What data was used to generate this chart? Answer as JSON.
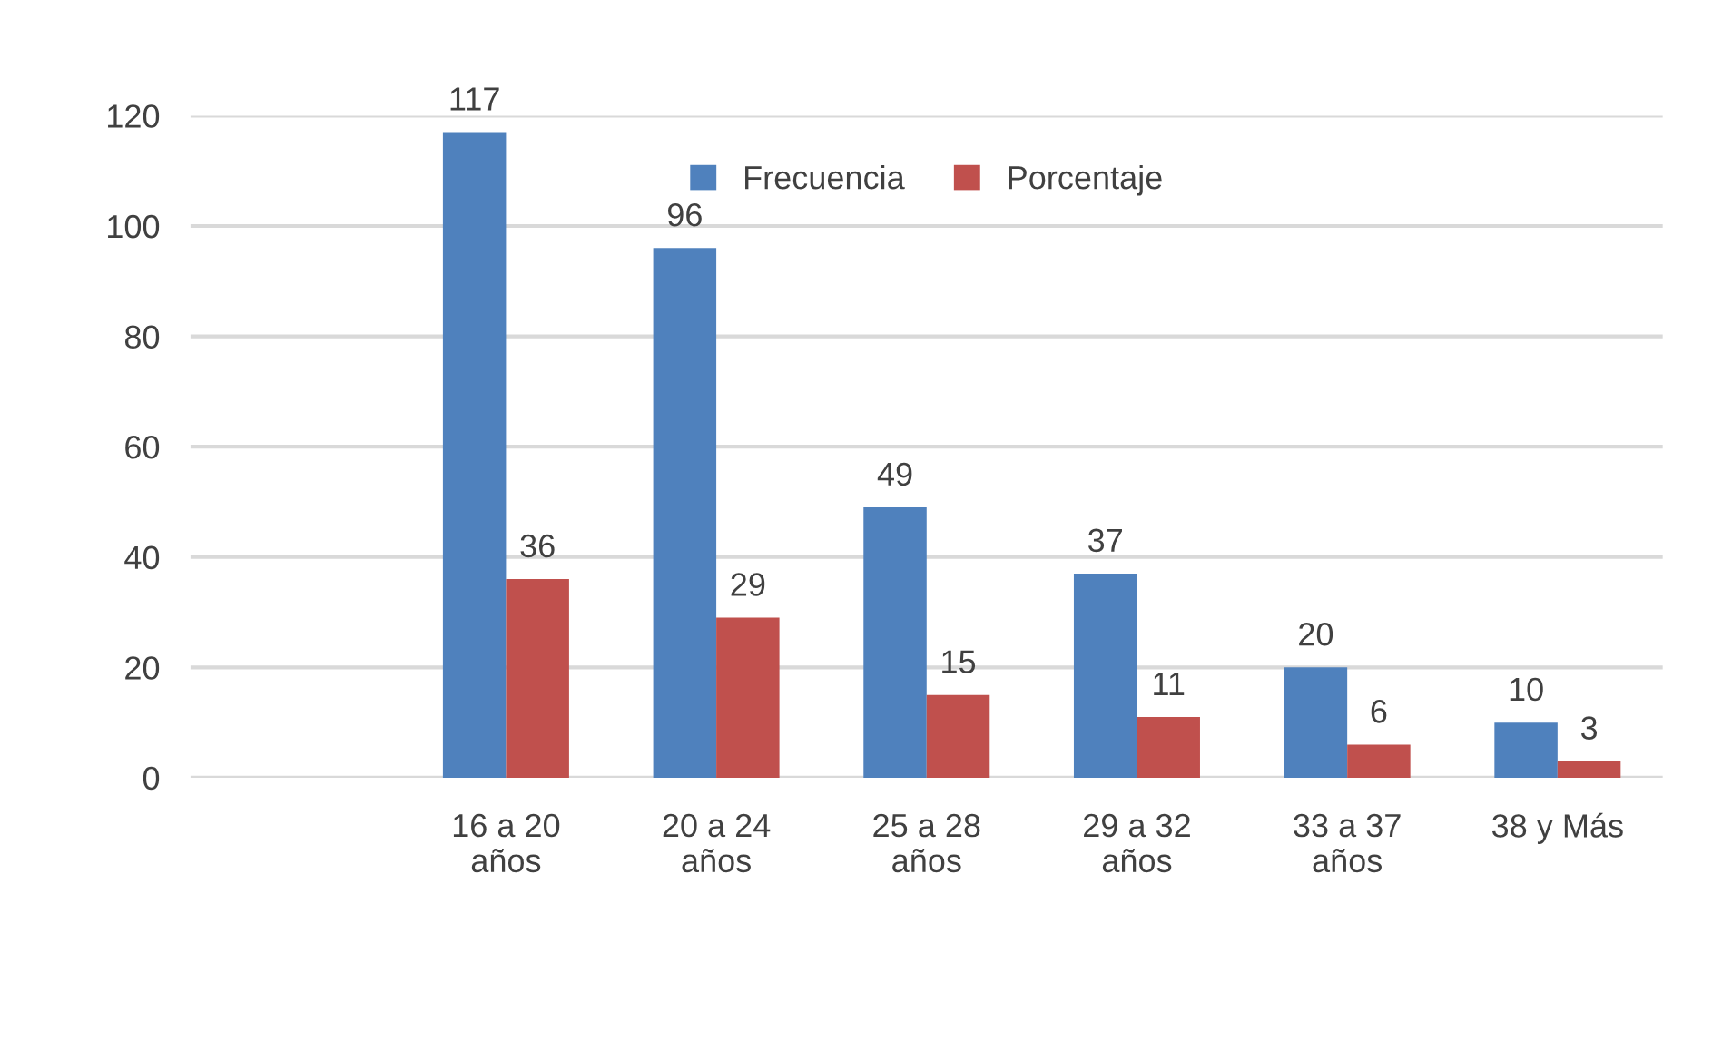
{
  "chart_data": {
    "type": "bar",
    "categories": [
      null,
      "16 a 20 años",
      "20 a 24 años",
      "25 a 28 años",
      "29 a 32 años",
      "33 a 37 años",
      "38 y Más"
    ],
    "series": [
      {
        "name": "Frecuencia",
        "color": "#4f81bd",
        "values": [
          null,
          117,
          96,
          49,
          37,
          20,
          10
        ]
      },
      {
        "name": "Porcentaje",
        "color": "#c0504d",
        "values": [
          null,
          36,
          29,
          15,
          11,
          6,
          3
        ]
      }
    ],
    "ylim": [
      0,
      120
    ],
    "yticks": [
      0,
      20,
      40,
      60,
      80,
      100,
      120
    ],
    "grid": "y",
    "legend": "top",
    "data_labels": true
  }
}
